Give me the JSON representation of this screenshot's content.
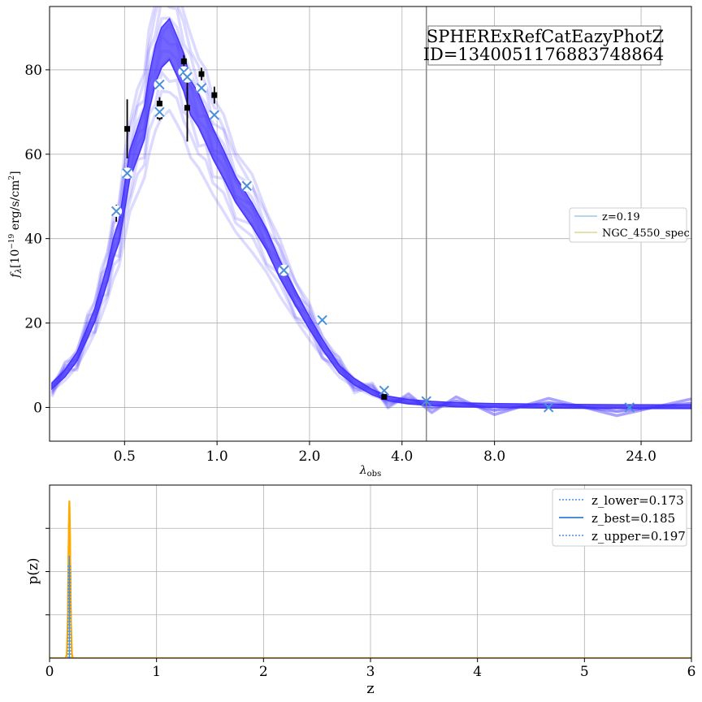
{
  "chart_data": [
    {
      "type": "line",
      "title": "SPHERExRefCatEazyPhotZ",
      "subtitle": "ID=1340051176883748864",
      "ylabel_main": "f",
      "ylabel_sub": "λ",
      "ylabel_unit_pre": "[10",
      "ylabel_unit_exp": "−19",
      "ylabel_unit_post": " erg/s/cm",
      "ylabel_unit_exp2": "2",
      "ylabel_unit_end": "]",
      "xlabel_main": "λ",
      "xlabel_sub": "obs",
      "x_scale": "log",
      "xlim": [
        0.285,
        35
      ],
      "ylim": [
        -8,
        95
      ],
      "xticks": [
        0.5,
        1.0,
        2.0,
        4.0,
        8.0,
        24.0
      ],
      "xtick_labels": [
        "0.5",
        "1.0",
        "2.0",
        "4.0",
        "8.0",
        "24.0"
      ],
      "yticks": [
        0,
        20,
        40,
        60,
        80
      ],
      "ytick_labels": [
        "0",
        "20",
        "40",
        "60",
        "80"
      ],
      "vertical_line_x": 4.8,
      "grid": true,
      "legend_position": "center-right",
      "legend": [
        {
          "name": "z=0.19",
          "color": "#9ecae1"
        },
        {
          "name": "NGC_4550_spec",
          "color": "#d8d98f"
        }
      ],
      "model_color": "#4433ff",
      "model_curve": {
        "x": [
          0.29,
          0.32,
          0.35,
          0.38,
          0.4,
          0.42,
          0.44,
          0.46,
          0.48,
          0.5,
          0.52,
          0.55,
          0.58,
          0.6,
          0.63,
          0.66,
          0.7,
          0.74,
          0.78,
          0.82,
          0.87,
          0.92,
          0.97,
          1.05,
          1.15,
          1.3,
          1.45,
          1.6,
          1.8,
          2.0,
          2.2,
          2.5,
          2.8,
          3.2,
          3.6,
          4.2,
          5.0,
          6.0,
          8.0,
          12.0,
          20.0,
          35.0
        ],
        "y": [
          5,
          8,
          12,
          18,
          22,
          27,
          32,
          38,
          42,
          50,
          58,
          63,
          68,
          75,
          82,
          86,
          88,
          84,
          80,
          74,
          71,
          67,
          63,
          58,
          52,
          46,
          40,
          33,
          26,
          20,
          15,
          9,
          6,
          3.5,
          2,
          1.2,
          0.8,
          0.5,
          0.3,
          0.15,
          0.05,
          0.02
        ]
      },
      "photometry_points": {
        "x": [
          0.47,
          0.51,
          0.65,
          0.65,
          0.78,
          0.8,
          0.89,
          0.98,
          3.5
        ],
        "y": [
          46,
          66,
          69,
          72,
          82,
          71,
          79,
          74,
          2.5
        ],
        "err": [
          2,
          7,
          1,
          1.5,
          1.5,
          8,
          1.5,
          2,
          0.3
        ]
      },
      "model_photometry": {
        "x": [
          0.47,
          0.51,
          0.65,
          0.65,
          0.78,
          0.8,
          0.89,
          0.98,
          1.25,
          1.65,
          2.2,
          3.5,
          4.8,
          12.0,
          22.0
        ],
        "y": [
          46.5,
          55.5,
          76.5,
          70,
          79.5,
          78.3,
          75.7,
          69.3,
          52.5,
          32.5,
          20.7,
          4,
          1.5,
          0,
          0
        ],
        "circled": [
          true,
          true,
          true,
          true,
          true,
          true,
          true,
          true,
          true,
          true,
          true,
          false,
          false,
          false,
          false
        ]
      }
    },
    {
      "type": "line",
      "xlabel": "z",
      "ylabel": "p(z)",
      "xlim": [
        0,
        6
      ],
      "ylim": [
        0,
        1.1
      ],
      "xticks": [
        0,
        1,
        2,
        3,
        4,
        5,
        6
      ],
      "xtick_labels": [
        "0",
        "1",
        "2",
        "3",
        "4",
        "5",
        "6"
      ],
      "grid": true,
      "legend_position": "top-right",
      "legend": [
        {
          "name": "z_lower=0.173",
          "style": "dotted",
          "color": "#4a90d9"
        },
        {
          "name": "z_best=0.185",
          "style": "solid",
          "color": "#4a90d9"
        },
        {
          "name": "z_upper=0.197",
          "style": "dotted",
          "color": "#4a90d9"
        }
      ],
      "pz_color": "#ffaa00",
      "z_peak": 0.185,
      "z_lower": 0.173,
      "z_upper": 0.197,
      "z_best": 0.185
    }
  ]
}
